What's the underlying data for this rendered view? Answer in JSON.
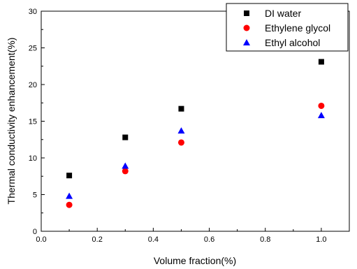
{
  "chart_data": {
    "type": "scatter",
    "title": "",
    "xlabel": "Volume fraction(%)",
    "ylabel": "Thermal conductivity enhancement(%)",
    "xlim": [
      0.0,
      1.1
    ],
    "ylim": [
      0,
      30
    ],
    "x_ticks": [
      "0.0",
      "0.2",
      "0.4",
      "0.6",
      "0.8",
      "1.0"
    ],
    "y_ticks": [
      "0",
      "5",
      "10",
      "15",
      "20",
      "25",
      "30"
    ],
    "grid": false,
    "legend_position": "top-right",
    "series": [
      {
        "name": "DI water",
        "marker": "square",
        "color": "#000000",
        "x": [
          0.1,
          0.3,
          0.5,
          1.0
        ],
        "y": [
          7.6,
          12.8,
          16.7,
          23.1
        ]
      },
      {
        "name": "Ethylene glycol",
        "marker": "circle",
        "color": "#ff0000",
        "x": [
          0.1,
          0.3,
          0.5,
          1.0
        ],
        "y": [
          3.6,
          8.2,
          12.1,
          17.1
        ]
      },
      {
        "name": "Ethyl alcohol",
        "marker": "triangle",
        "color": "#0000ff",
        "x": [
          0.1,
          0.3,
          0.5,
          1.0
        ],
        "y": [
          4.8,
          8.9,
          13.7,
          15.8
        ]
      }
    ]
  }
}
